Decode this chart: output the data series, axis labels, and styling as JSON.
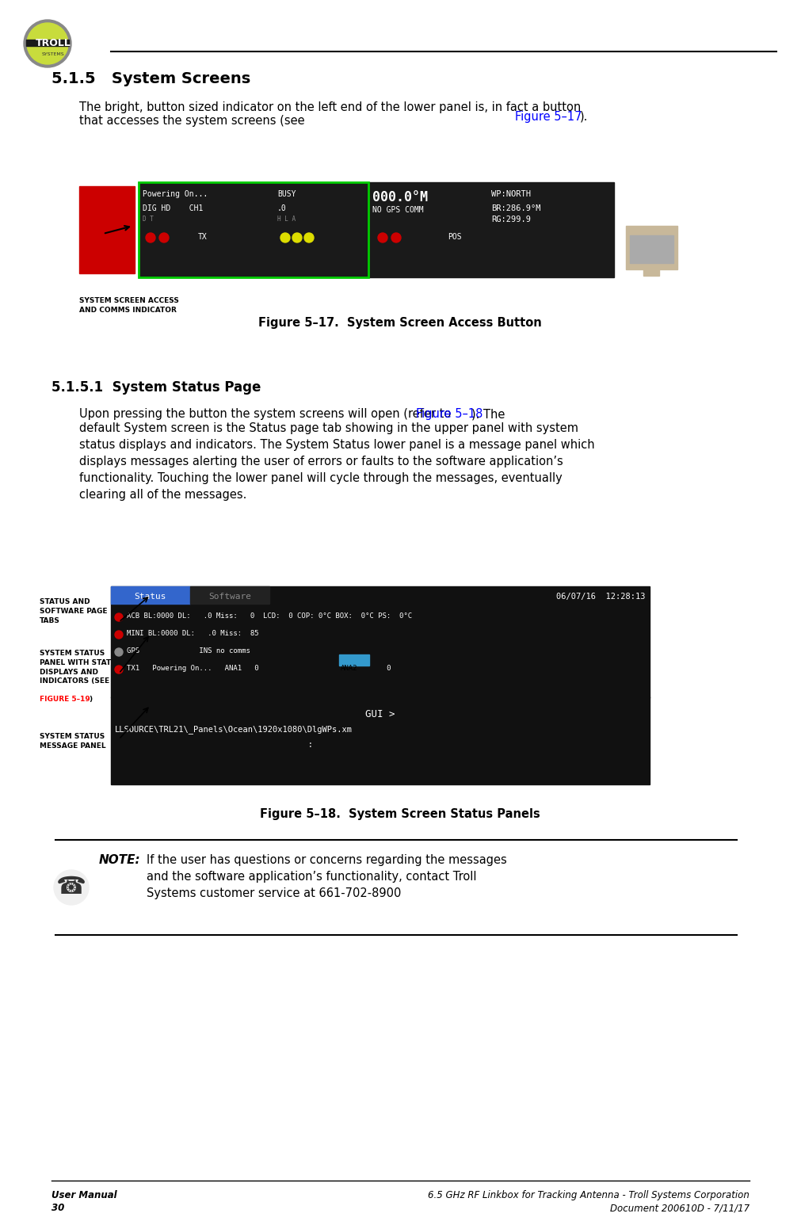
{
  "page_bg": "#ffffff",
  "header_line_color": "#000000",
  "footer_line_color": "#000000",
  "logo_text": "TROLL\nSYSTEMS",
  "section_title": "5.1.5   System Screens",
  "section_title_fontsize": 14,
  "body_text_1": "The bright, button sized indicator on the left end of the lower panel is, in fact a button\nthat accesses the system screens (see Figure 5–17).",
  "body_text_1_link": "Figure 5–17",
  "fig1_caption": "Figure 5–17.  System Screen Access Button",
  "subsection_title": "5.1.5.1  System Status Page",
  "body_text_2": "Upon pressing the button the system screens will open (refer to Figure 5–18). The\ndefault System screen is the Status page tab showing in the upper panel with system\nstatus displays and indicators. The System Status lower panel is a message panel which\ndisplays messages alerting the user of errors or faults to the software application’s\nfunctionality. Touching the lower panel will cycle through the messages, eventually\nclearing all of the messages.",
  "body_text_2_link": "Figure 5–18",
  "fig2_caption": "Figure 5–18.  System Screen Status Panels",
  "note_bold": "NOTE:",
  "note_text": "If the user has questions or concerns regarding the messages\nand the software application’s functionality, contact Troll\nSystems customer service at 661-702-8900",
  "footer_left_1": "User Manual",
  "footer_left_2": "30",
  "footer_right_1": "6.5 GHz RF Linkbox for Tracking Antenna - Troll Systems Corporation",
  "footer_right_2": "Document 200610D - 7/11/17",
  "label_1": "SYSTEM SCREEN ACCESS\nAND COMMS INDICATOR",
  "label_2": "STATUS AND\nSOFTWARE PAGE\nTABS",
  "label_3": "SYSTEM STATUS\nPANEL WITH STATUS\nDISPLAYS AND\nINDICATORS (SEE\nFIGURE 5–19)",
  "label_4": "SYSTEM STATUS\nMESSAGE PANEL",
  "link_color": "#0000FF",
  "label_color": "#000000",
  "fig_ref_color": "#FF0000"
}
